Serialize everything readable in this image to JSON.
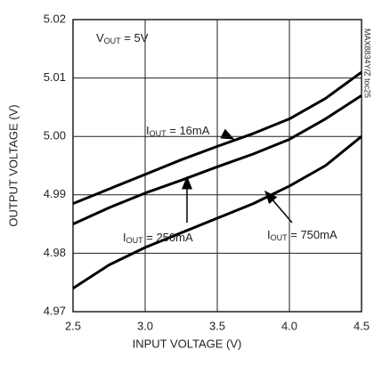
{
  "chart_data": {
    "type": "line",
    "x_label": "INPUT VOLTAGE (V)",
    "y_label": "OUTPUT VOLTAGE (V)",
    "side_note": "MAX8834Y/Z toc25",
    "condition": [
      "V",
      "OUT",
      " = 5V"
    ],
    "x": [
      2.5,
      2.75,
      3.0,
      3.25,
      3.5,
      3.75,
      4.0,
      4.25,
      4.5
    ],
    "series": [
      {
        "label": [
          "I",
          "OUT",
          " = 16mA"
        ],
        "color": "#000000",
        "values": [
          4.9885,
          4.991,
          4.9935,
          4.996,
          4.9983,
          5.0005,
          5.003,
          5.0065,
          5.011
        ]
      },
      {
        "label": [
          "I",
          "OUT",
          " = 250mA"
        ],
        "color": "#000000",
        "values": [
          4.985,
          4.9878,
          4.9903,
          4.9925,
          4.9948,
          4.997,
          4.9995,
          5.003,
          5.007
        ]
      },
      {
        "label": [
          "I",
          "OUT",
          " = 750mA"
        ],
        "color": "#000000",
        "values": [
          4.974,
          4.978,
          4.981,
          4.9835,
          4.986,
          4.9885,
          4.9915,
          4.995,
          5.0
        ]
      }
    ],
    "xlim": [
      2.5,
      4.5
    ],
    "xticks": [
      2.5,
      {
        "value": 3,
        "label": "3.0"
      },
      3.5,
      {
        "value": 4,
        "label": "4.0"
      },
      4.5
    ],
    "ylim": [
      4.97,
      5.02
    ],
    "yticks": [
      4.97,
      4.98,
      4.99,
      {
        "value": 5,
        "label": "5.00"
      },
      5.01,
      5.02
    ],
    "grid": true
  }
}
